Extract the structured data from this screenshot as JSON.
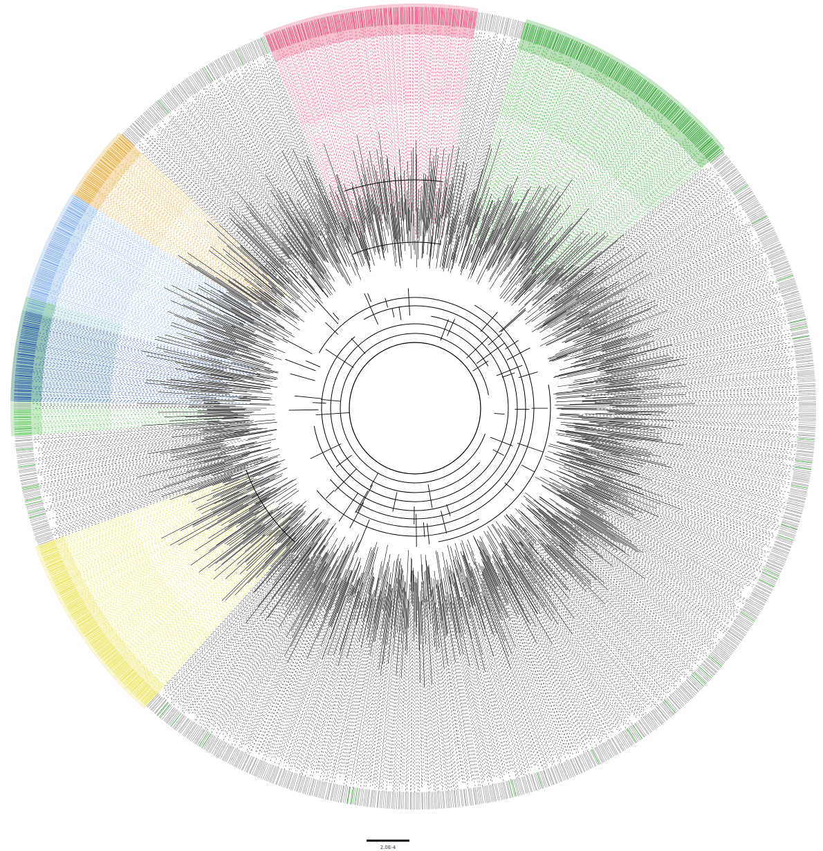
{
  "figure": {
    "type": "circular-phylogenetic-tree",
    "scale_bar": {
      "label": "2.0E-4"
    },
    "colors": {
      "branch": "#000000",
      "tip_label_default": "#9a9a9a",
      "highlighted_green": "#1aa01a",
      "clade_pink": "#e0386a",
      "clade_green": "#1f9a1f",
      "clade_light_green": "#4cbf4c",
      "clade_orange": "#e0a020",
      "clade_light_blue": "#6fa3e8",
      "clade_dark_blue": "#1040b0",
      "clade_yellow": "#e8e040",
      "clade_light_gray": "#b8b8b8"
    },
    "clades": [
      {
        "name": "pink",
        "color_key": "clade_pink"
      },
      {
        "name": "green",
        "color_key": "clade_green"
      },
      {
        "name": "orange",
        "color_key": "clade_orange"
      },
      {
        "name": "light-blue",
        "color_key": "clade_light_blue"
      },
      {
        "name": "dark-blue",
        "color_key": "clade_dark_blue"
      },
      {
        "name": "light-green",
        "color_key": "clade_light_green"
      },
      {
        "name": "yellow",
        "color_key": "clade_yellow"
      }
    ]
  }
}
